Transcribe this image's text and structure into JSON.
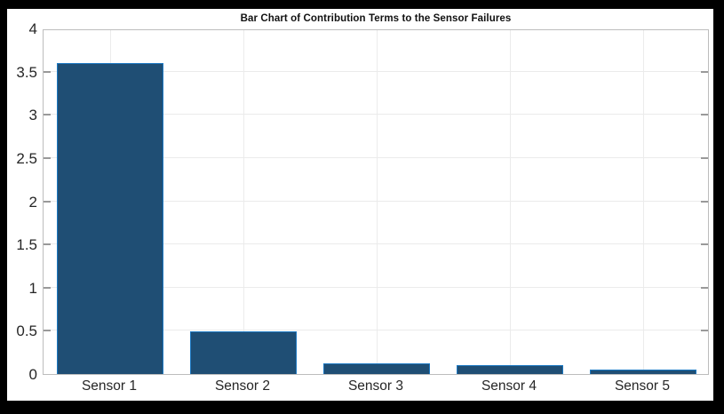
{
  "window": {
    "frame_color": "#000000",
    "panel_color": "#ffffff"
  },
  "chart_data": {
    "type": "bar",
    "title": "Bar Chart of Contribution Terms to the Sensor Failures",
    "categories": [
      "Sensor 1",
      "Sensor 2",
      "Sensor 3",
      "Sensor 4",
      "Sensor 5"
    ],
    "values": [
      3.6,
      0.49,
      0.12,
      0.1,
      0.05
    ],
    "xlabel": "",
    "ylabel": "",
    "ylim": [
      0,
      4
    ],
    "ytick_step": 0.5,
    "ytick_labels": [
      "0",
      "0.5",
      "1",
      "1.5",
      "2",
      "2.5",
      "3",
      "3.5",
      "4"
    ],
    "grid": true,
    "legend_position": "none",
    "bar_width_fraction": 0.8,
    "colors": {
      "bar_fill": "#1f4e74",
      "bar_edge": "#1b78c2",
      "grid_color": "#ebebeb",
      "box_color": "#bdbdbd",
      "tick_color": "#999999",
      "text_color": "#262626",
      "title_color": "#111111"
    }
  }
}
